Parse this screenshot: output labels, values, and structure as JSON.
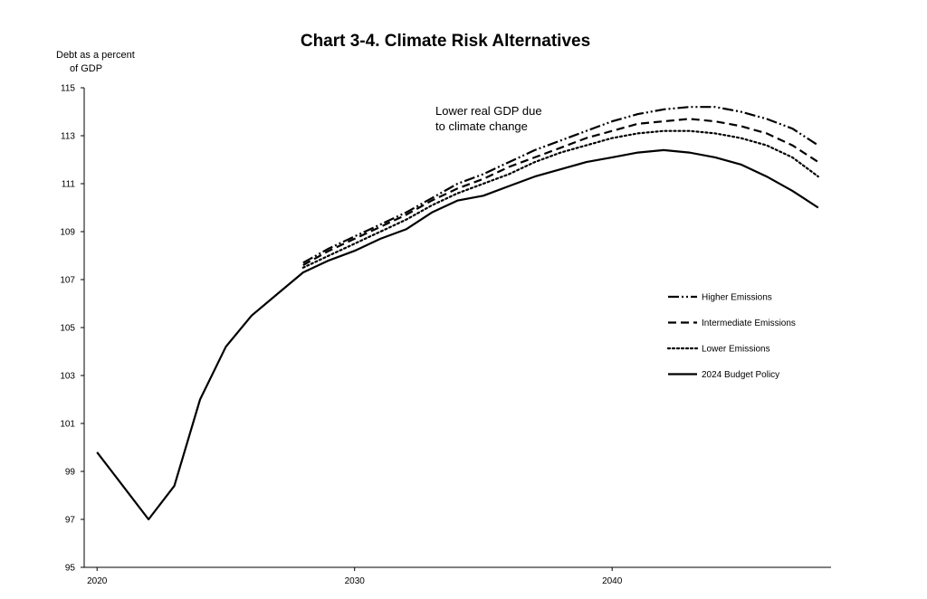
{
  "chart_data": {
    "type": "line",
    "title": "Chart 3-4. Climate Risk Alternatives",
    "ylabel_lines": [
      "Debt as a percent",
      "of GDP"
    ],
    "xlabel": "",
    "ylim": [
      95,
      115
    ],
    "xlim": [
      2019.5,
      2048.5
    ],
    "y_ticks": [
      95,
      97,
      99,
      101,
      103,
      105,
      107,
      109,
      111,
      113,
      115
    ],
    "y_tick_labels": [
      "95",
      "97",
      "99",
      "101",
      "103",
      "105",
      "107",
      "109",
      "111",
      "113",
      "115"
    ],
    "x_ticks": [
      2020,
      2030,
      2040
    ],
    "x_tick_labels": [
      "2020",
      "2030",
      "2040"
    ],
    "grid": false,
    "legend_position": "center-right",
    "annotation_lines": [
      "Lower real GDP due",
      "to climate change"
    ],
    "series": [
      {
        "name": "Higher Emissions",
        "style": "dash-dot-dot",
        "x": [
          2028,
          2029,
          2030,
          2031,
          2032,
          2033,
          2034,
          2035,
          2036,
          2037,
          2038,
          2039,
          2040,
          2041,
          2042,
          2043,
          2044,
          2045,
          2046,
          2047,
          2048
        ],
        "values": [
          107.7,
          108.3,
          108.8,
          109.3,
          109.8,
          110.4,
          111.0,
          111.4,
          111.9,
          112.4,
          112.8,
          113.2,
          113.6,
          113.9,
          114.1,
          114.2,
          114.2,
          114.0,
          113.7,
          113.3,
          112.6
        ]
      },
      {
        "name": "Intermediate Emissions",
        "style": "dashed",
        "x": [
          2028,
          2029,
          2030,
          2031,
          2032,
          2033,
          2034,
          2035,
          2036,
          2037,
          2038,
          2039,
          2040,
          2041,
          2042,
          2043,
          2044,
          2045,
          2046,
          2047,
          2048
        ],
        "values": [
          107.6,
          108.2,
          108.7,
          109.2,
          109.7,
          110.3,
          110.8,
          111.2,
          111.7,
          112.1,
          112.5,
          112.9,
          113.2,
          113.5,
          113.6,
          113.7,
          113.6,
          113.4,
          113.1,
          112.6,
          111.9
        ]
      },
      {
        "name": "Lower Emissions",
        "style": "dotted",
        "x": [
          2028,
          2029,
          2030,
          2031,
          2032,
          2033,
          2034,
          2035,
          2036,
          2037,
          2038,
          2039,
          2040,
          2041,
          2042,
          2043,
          2044,
          2045,
          2046,
          2047,
          2048
        ],
        "values": [
          107.5,
          108.0,
          108.5,
          109.0,
          109.5,
          110.1,
          110.6,
          111.0,
          111.4,
          111.9,
          112.3,
          112.6,
          112.9,
          113.1,
          113.2,
          113.2,
          113.1,
          112.9,
          112.6,
          112.1,
          111.3
        ]
      },
      {
        "name": "2024 Budget Policy",
        "style": "solid",
        "x": [
          2020,
          2021,
          2022,
          2023,
          2024,
          2025,
          2026,
          2027,
          2028,
          2029,
          2030,
          2031,
          2032,
          2033,
          2034,
          2035,
          2036,
          2037,
          2038,
          2039,
          2040,
          2041,
          2042,
          2043,
          2044,
          2045,
          2046,
          2047,
          2048
        ],
        "values": [
          99.8,
          98.4,
          97.0,
          98.4,
          102.0,
          104.2,
          105.5,
          106.4,
          107.3,
          107.8,
          108.2,
          108.7,
          109.1,
          109.8,
          110.3,
          110.5,
          110.9,
          111.3,
          111.6,
          111.9,
          112.1,
          112.3,
          112.4,
          112.3,
          112.1,
          111.8,
          111.3,
          110.7,
          110.0
        ]
      }
    ]
  }
}
